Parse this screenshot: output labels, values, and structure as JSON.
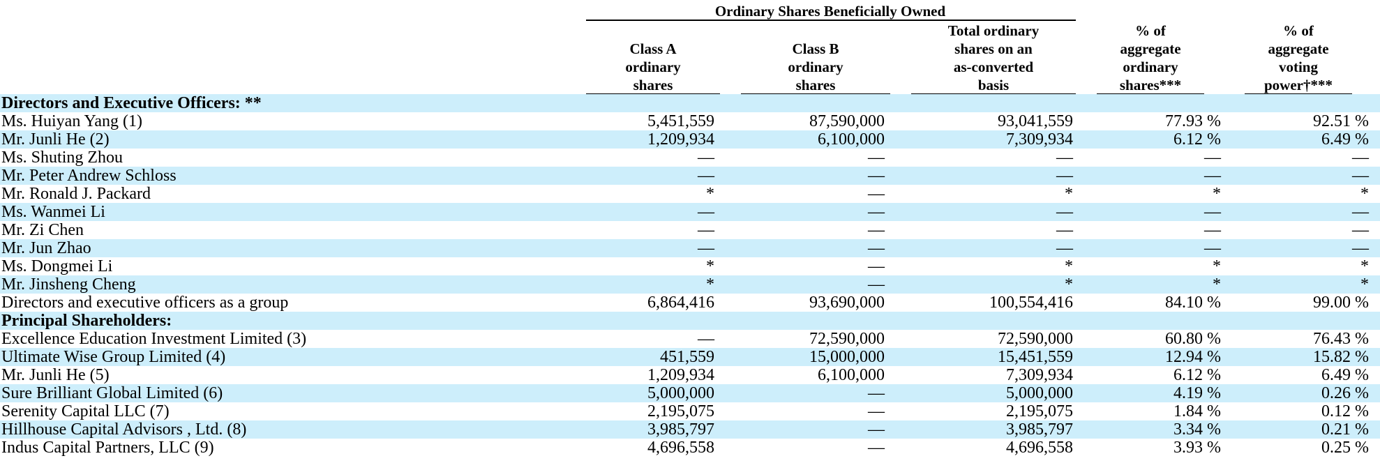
{
  "header": {
    "group_title": "Ordinary Shares Beneficially Owned",
    "columns": [
      "Class A\nordinary\nshares",
      "Class B\nordinary\nshares",
      "Total ordinary\nshares on an\nas-converted\nbasis",
      "% of\naggregate\nordinary\nshares***",
      "% of\naggregate\nvoting\npower†***"
    ]
  },
  "rows": [
    {
      "label": "Directors and Executive Officers: **",
      "section": true,
      "values": [
        "",
        "",
        "",
        "",
        ""
      ]
    },
    {
      "label": "Ms. Huiyan Yang (1)",
      "values": [
        "5,451,559",
        "87,590,000",
        "93,041,559",
        "77.93 %",
        "92.51 %"
      ]
    },
    {
      "label": "Mr. Junli He (2)",
      "values": [
        "1,209,934",
        "6,100,000",
        "7,309,934",
        "6.12 %",
        "6.49 %"
      ]
    },
    {
      "label": "Ms. Shuting Zhou",
      "values": [
        "—",
        "—",
        "—",
        "—",
        "—"
      ]
    },
    {
      "label": "Mr. Peter Andrew Schloss",
      "values": [
        "—",
        "—",
        "—",
        "—",
        "—"
      ]
    },
    {
      "label": "Mr. Ronald J. Packard",
      "values": [
        "*",
        "—",
        "*",
        "*",
        "*"
      ]
    },
    {
      "label": "Ms. Wanmei Li",
      "values": [
        "—",
        "—",
        "—",
        "—",
        "—"
      ]
    },
    {
      "label": "Mr. Zi Chen",
      "values": [
        "—",
        "—",
        "—",
        "—",
        "—"
      ]
    },
    {
      "label": "Mr. Jun Zhao",
      "values": [
        "—",
        "—",
        "—",
        "—",
        "—"
      ]
    },
    {
      "label": "Ms. Dongmei Li",
      "values": [
        "*",
        "—",
        "*",
        "*",
        "*"
      ]
    },
    {
      "label": "Mr. Jinsheng Cheng",
      "values": [
        "*",
        "—",
        "*",
        "*",
        "*"
      ]
    },
    {
      "label": "Directors and executive officers as a group",
      "values": [
        "6,864,416",
        "93,690,000",
        "100,554,416",
        "84.10 %",
        "99.00 %"
      ]
    },
    {
      "label": "Principal Shareholders:",
      "section": true,
      "values": [
        "",
        "",
        "",
        "",
        ""
      ]
    },
    {
      "label": "Excellence Education Investment Limited (3)",
      "values": [
        "—",
        "72,590,000",
        "72,590,000",
        "60.80 %",
        "76.43 %"
      ]
    },
    {
      "label": "Ultimate Wise Group Limited (4)",
      "values": [
        "451,559",
        "15,000,000",
        "15,451,559",
        "12.94 %",
        "15.82 %"
      ]
    },
    {
      "label": "Mr. Junli He (5)",
      "values": [
        "1,209,934",
        "6,100,000",
        "7,309,934",
        "6.12 %",
        "6.49 %"
      ]
    },
    {
      "label": "Sure Brilliant Global Limited (6)",
      "values": [
        "5,000,000",
        "—",
        "5,000,000",
        "4.19 %",
        "0.26 %"
      ]
    },
    {
      "label": "Serenity Capital LLC (7)",
      "values": [
        "2,195,075",
        "—",
        "2,195,075",
        "1.84 %",
        "0.12 %"
      ]
    },
    {
      "label": "Hillhouse Capital Advisors , Ltd. (8)",
      "values": [
        "3,985,797",
        "—",
        "3,985,797",
        "3.34 %",
        "0.21 %"
      ]
    },
    {
      "label": "Indus Capital Partners, LLC (9)",
      "values": [
        "4,696,558",
        "—",
        "4,696,558",
        "3.93 %",
        "0.25 %"
      ]
    }
  ]
}
